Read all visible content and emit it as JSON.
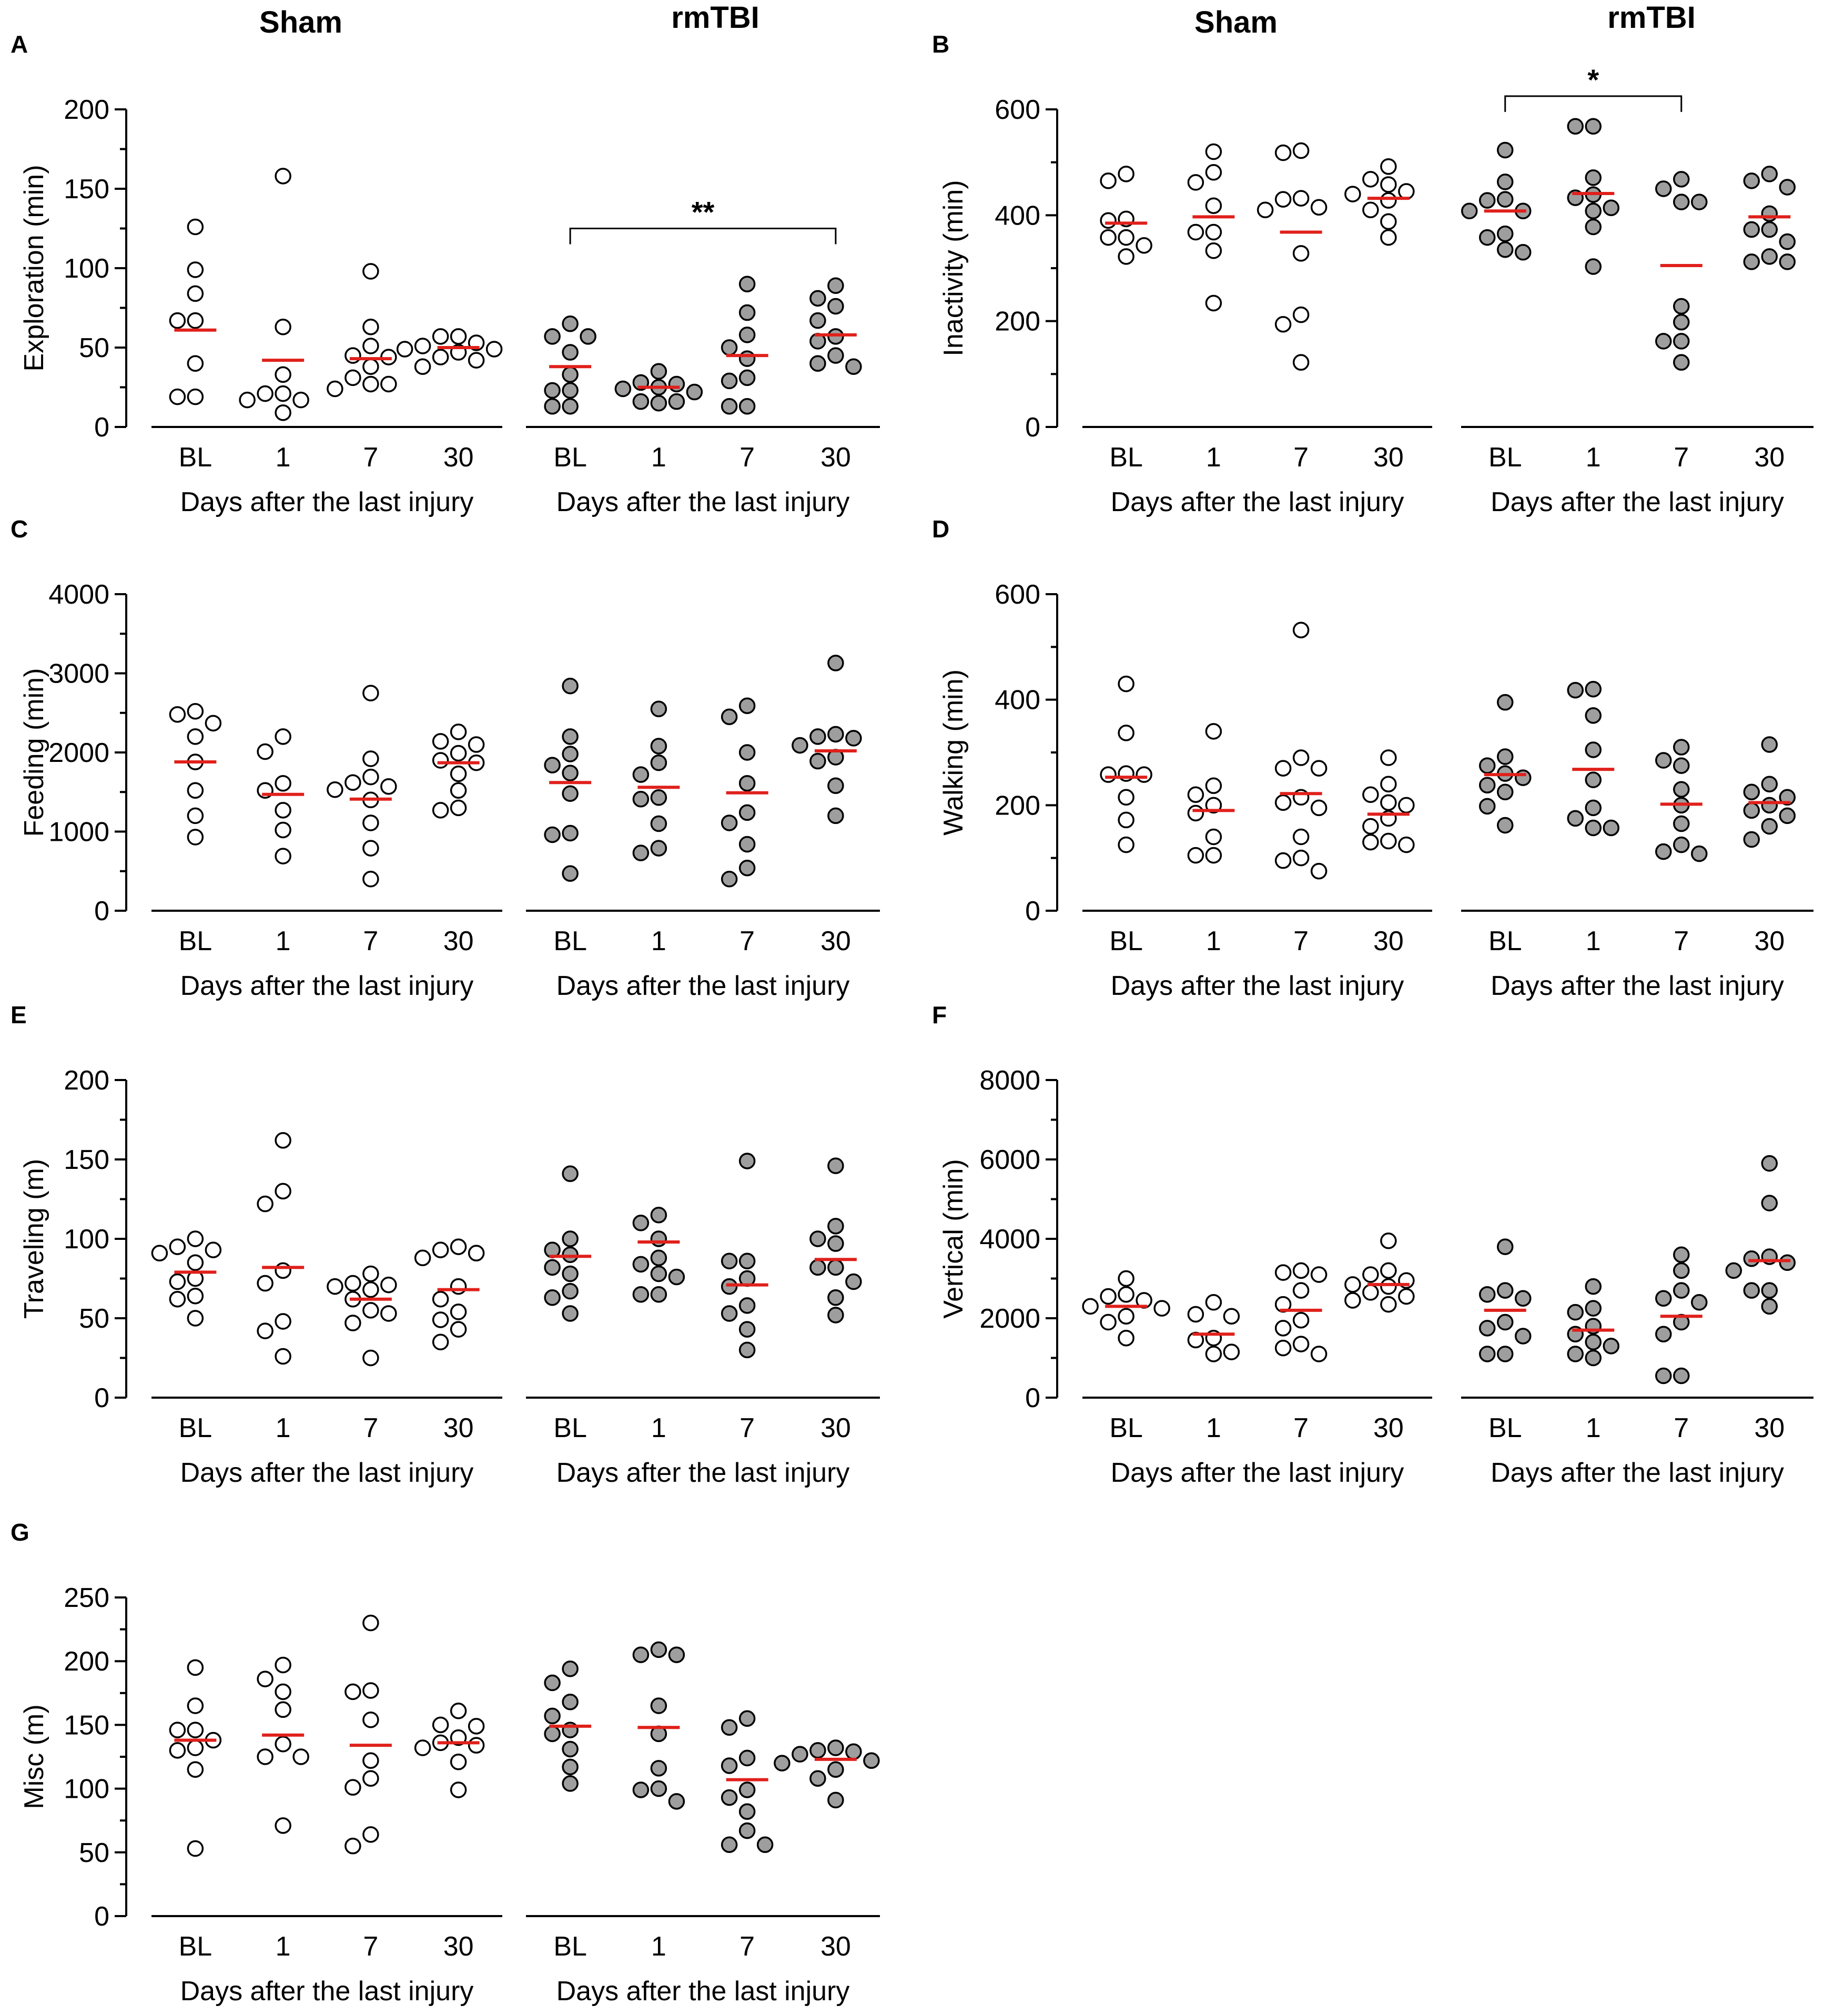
{
  "figure": {
    "group_titles": [
      "Sham",
      "rmTBI"
    ],
    "colors": {
      "mean_line": "#e0201b",
      "sham_fill": "#ffffff",
      "rmtbi_fill": "#9e9e9e",
      "axis": "#000000"
    }
  },
  "chart_data": [
    {
      "panel": "A",
      "type": "scatter",
      "ylabel": "Exploration (min)",
      "ylim": [
        0,
        200
      ],
      "yticks": [
        0,
        50,
        100,
        150,
        200
      ],
      "categories": [
        "BL",
        "1",
        "7",
        "30"
      ],
      "xlabel": "Days after the last injury",
      "groups": [
        {
          "name": "Sham",
          "means": [
            61,
            42,
            43,
            50
          ],
          "points": [
            [
              126,
              99,
              84,
              67,
              67,
              40,
              19,
              19
            ],
            [
              158,
              63,
              33,
              21,
              21,
              17,
              17,
              9
            ],
            [
              98,
              63,
              51,
              45,
              44,
              38,
              31,
              27,
              27,
              24
            ],
            [
              57,
              57,
              53,
              51,
              49,
              49,
              47,
              44,
              42,
              38
            ]
          ]
        },
        {
          "name": "rmTBI",
          "means": [
            38,
            25,
            45,
            58
          ],
          "points": [
            [
              65,
              57,
              57,
              47,
              33,
              23,
              23,
              13,
              13
            ],
            [
              35,
              28,
              27,
              25,
              24,
              22,
              16,
              16,
              15
            ],
            [
              90,
              72,
              58,
              50,
              43,
              31,
              29,
              13,
              13
            ],
            [
              89,
              81,
              76,
              67,
              57,
              54,
              45,
              40,
              38
            ]
          ]
        }
      ],
      "annotations": [
        {
          "group": "rmTBI",
          "from": "BL",
          "to": "30",
          "label": "**",
          "y": 125
        }
      ]
    },
    {
      "panel": "B",
      "type": "scatter",
      "ylabel": "Inactivity (min)",
      "ylim": [
        0,
        600
      ],
      "yticks": [
        0,
        200,
        400,
        600
      ],
      "categories": [
        "BL",
        "1",
        "7",
        "30"
      ],
      "xlabel": "Days after the last injury",
      "groups": [
        {
          "name": "Sham",
          "means": [
            385,
            397,
            368,
            432
          ],
          "points": [
            [
              478,
              465,
              393,
              390,
              358,
              358,
              343,
              322
            ],
            [
              520,
              481,
              462,
              418,
              368,
              368,
              333,
              234
            ],
            [
              522,
              518,
              432,
              430,
              415,
              410,
              328,
              212,
              194,
              122
            ],
            [
              492,
              468,
              458,
              445,
              440,
              428,
              410,
              388,
              358
            ]
          ]
        },
        {
          "name": "rmTBI",
          "means": [
            408,
            441,
            305,
            397
          ],
          "points": [
            [
              523,
              463,
              430,
              428,
              408,
              408,
              365,
              358,
              335,
              330
            ],
            [
              568,
              568,
              471,
              439,
              433,
              414,
              408,
              378,
              303
            ],
            [
              468,
              450,
              425,
              425,
              228,
              198,
              162,
              162,
              122
            ],
            [
              478,
              465,
              453,
              403,
              373,
              373,
              350,
              322,
              312,
              312
            ]
          ]
        }
      ],
      "annotations": [
        {
          "group": "rmTBI",
          "from": "BL",
          "to": "7",
          "label": "*",
          "y": 625
        }
      ]
    },
    {
      "panel": "C",
      "type": "scatter",
      "ylabel": "Feeding (min)",
      "ylim": [
        0,
        4000
      ],
      "yticks": [
        0,
        1000,
        2000,
        3000,
        4000
      ],
      "categories": [
        "BL",
        "1",
        "7",
        "30"
      ],
      "xlabel": "Days after the last injury",
      "groups": [
        {
          "name": "Sham",
          "means": [
            1880,
            1470,
            1410,
            1870
          ],
          "points": [
            [
              2520,
              2480,
              2370,
              2200,
              1880,
              1520,
              1200,
              930
            ],
            [
              2200,
              2010,
              1610,
              1520,
              1270,
              1020,
              690
            ],
            [
              2750,
              1920,
              1690,
              1620,
              1570,
              1530,
              1400,
              1110,
              790,
              400
            ],
            [
              2260,
              2140,
              2100,
              1990,
              1900,
              1870,
              1730,
              1520,
              1300,
              1270
            ]
          ]
        },
        {
          "name": "rmTBI",
          "means": [
            1620,
            1560,
            1490,
            2020
          ],
          "points": [
            [
              2840,
              2200,
              1980,
              1840,
              1740,
              1480,
              980,
              960,
              470
            ],
            [
              2550,
              2080,
              1870,
              1720,
              1430,
              1410,
              1100,
              790,
              730
            ],
            [
              2590,
              2450,
              2000,
              1610,
              1240,
              1110,
              840,
              540,
              400
            ],
            [
              3130,
              2230,
              2200,
              2180,
              2090,
              1940,
              1890,
              1580,
              1200
            ]
          ]
        }
      ]
    },
    {
      "panel": "D",
      "type": "scatter",
      "ylabel": "Walking (min)",
      "ylim": [
        0,
        600
      ],
      "yticks": [
        0,
        200,
        400,
        600
      ],
      "categories": [
        "BL",
        "1",
        "7",
        "30"
      ],
      "xlabel": "Days after the last injury",
      "groups": [
        {
          "name": "Sham",
          "means": [
            253,
            190,
            222,
            183
          ],
          "points": [
            [
              430,
              337,
              260,
              258,
              258,
              215,
              172,
              125
            ],
            [
              340,
              237,
              220,
              200,
              185,
              140,
              105,
              105
            ],
            [
              532,
              290,
              270,
              270,
              215,
              205,
              195,
              140,
              100,
              95,
              75
            ],
            [
              290,
              240,
              220,
              205,
              200,
              175,
              160,
              132,
              130,
              125
            ]
          ]
        },
        {
          "name": "rmTBI",
          "means": [
            258,
            268,
            202,
            205
          ],
          "points": [
            [
              395,
              292,
              275,
              260,
              252,
              238,
              225,
              198,
              162
            ],
            [
              420,
              418,
              370,
              305,
              248,
              195,
              175,
              157,
              157
            ],
            [
              310,
              285,
              275,
              230,
              200,
              165,
              125,
              112,
              108
            ],
            [
              315,
              240,
              225,
              215,
              200,
              190,
              180,
              160,
              135
            ]
          ]
        }
      ]
    },
    {
      "panel": "E",
      "type": "scatter",
      "ylabel": "Traveling (m)",
      "ylim": [
        0,
        200
      ],
      "yticks": [
        0,
        50,
        100,
        150,
        200
      ],
      "categories": [
        "BL",
        "1",
        "7",
        "30"
      ],
      "xlabel": "Days after the last injury",
      "groups": [
        {
          "name": "Sham",
          "means": [
            79,
            82,
            62,
            68
          ],
          "points": [
            [
              100,
              95,
              93,
              91,
              85,
              75,
              73,
              64,
              62,
              50
            ],
            [
              162,
              130,
              122,
              80,
              72,
              48,
              42,
              26
            ],
            [
              78,
              72,
              71,
              70,
              68,
              62,
              55,
              53,
              47,
              25
            ],
            [
              95,
              93,
              91,
              88,
              70,
              62,
              54,
              49,
              43,
              35
            ]
          ]
        },
        {
          "name": "rmTBI",
          "means": [
            89,
            98,
            71,
            87
          ],
          "points": [
            [
              141,
              100,
              93,
              90,
              82,
              78,
              67,
              63,
              53
            ],
            [
              115,
              110,
              100,
              88,
              84,
              78,
              76,
              65,
              65
            ],
            [
              149,
              86,
              86,
              75,
              70,
              58,
              53,
              43,
              30
            ],
            [
              146,
              108,
              100,
              97,
              82,
              82,
              73,
              63,
              52
            ]
          ]
        }
      ]
    },
    {
      "panel": "F",
      "type": "scatter",
      "ylabel": "Vertical (min)",
      "ylim": [
        0,
        8000
      ],
      "yticks": [
        0,
        2000,
        4000,
        6000,
        8000
      ],
      "categories": [
        "BL",
        "1",
        "7",
        "30"
      ],
      "xlabel": "Days after the last injury",
      "groups": [
        {
          "name": "Sham",
          "means": [
            2300,
            1600,
            2200,
            2850
          ],
          "points": [
            [
              3000,
              2600,
              2550,
              2450,
              2300,
              2250,
              2050,
              1900,
              1500
            ],
            [
              2400,
              2100,
              2050,
              1500,
              1450,
              1150,
              1100
            ],
            [
              3200,
              3150,
              3100,
              2700,
              2350,
              1950,
              1750,
              1350,
              1250,
              1100
            ],
            [
              3950,
              3200,
              3100,
              2950,
              2850,
              2800,
              2650,
              2550,
              2450,
              2350
            ]
          ]
        },
        {
          "name": "rmTBI",
          "means": [
            2200,
            1700,
            2050,
            3450
          ],
          "points": [
            [
              3800,
              2700,
              2600,
              2500,
              1900,
              1750,
              1550,
              1100,
              1100
            ],
            [
              2800,
              2250,
              2150,
              1800,
              1600,
              1400,
              1300,
              1100,
              1000
            ],
            [
              3600,
              3200,
              2700,
              2500,
              2400,
              1900,
              1600,
              550,
              550
            ],
            [
              5900,
              4900,
              3550,
              3500,
              3400,
              3200,
              2700,
              2700,
              2300
            ]
          ]
        }
      ]
    },
    {
      "panel": "G",
      "type": "scatter",
      "ylabel": "Misc (m)",
      "ylim": [
        0,
        250
      ],
      "yticks": [
        0,
        50,
        100,
        150,
        200,
        250
      ],
      "categories": [
        "BL",
        "1",
        "7",
        "30"
      ],
      "xlabel": "Days after the last injury",
      "groups": [
        {
          "name": "Sham",
          "means": [
            138,
            142,
            134,
            136
          ],
          "points": [
            [
              195,
              165,
              146,
              146,
              138,
              132,
              130,
              115,
              53
            ],
            [
              197,
              186,
              176,
              162,
              135,
              125,
              125,
              71
            ],
            [
              230,
              177,
              176,
              154,
              122,
              108,
              101,
              64,
              55
            ],
            [
              161,
              150,
              149,
              140,
              136,
              134,
              132,
              121,
              99
            ]
          ]
        },
        {
          "name": "rmTBI",
          "means": [
            149,
            148,
            107,
            123
          ],
          "points": [
            [
              194,
              183,
              168,
              157,
              146,
              143,
              131,
              117,
              104
            ],
            [
              209,
              205,
              205,
              165,
              143,
              116,
              100,
              99,
              90
            ],
            [
              155,
              148,
              124,
              118,
              99,
              93,
              82,
              67,
              56,
              56
            ],
            [
              132,
              130,
              129,
              127,
              122,
              120,
              115,
              108,
              91
            ]
          ]
        }
      ]
    }
  ]
}
